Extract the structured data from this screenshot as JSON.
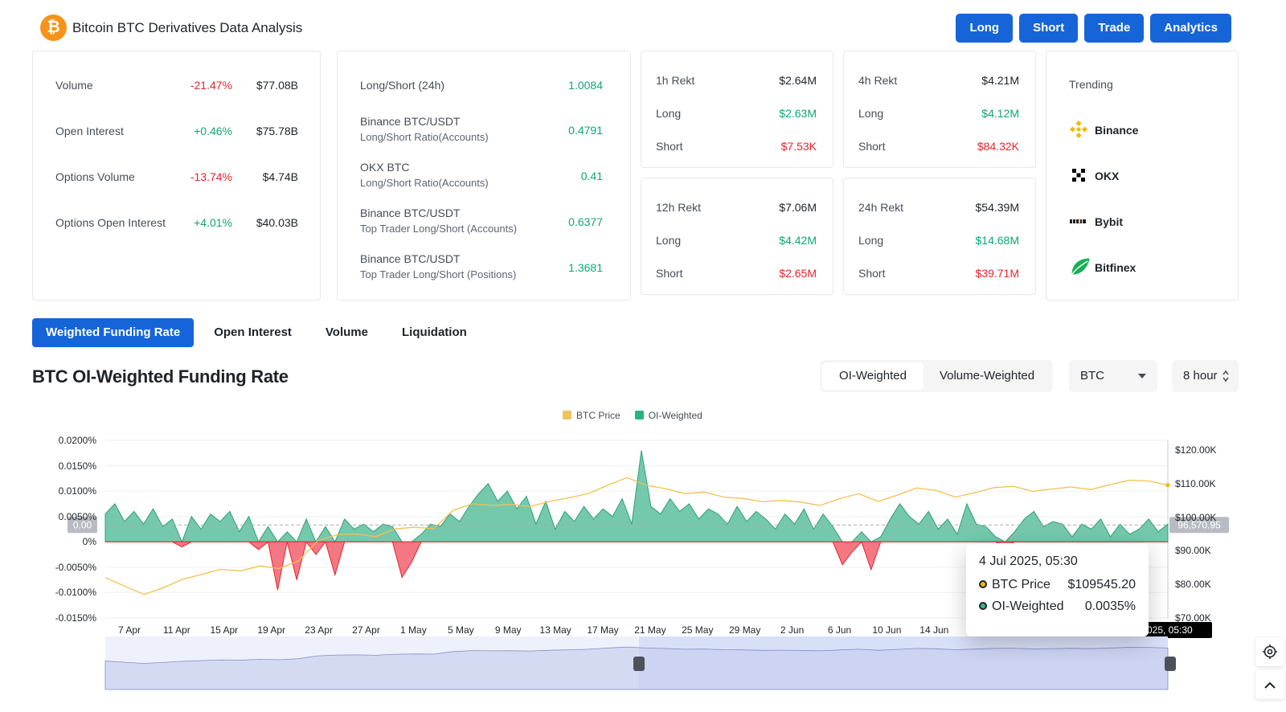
{
  "app": {
    "title": "Bitcoin BTC Derivatives Data Analysis",
    "logo_glyph": "₿"
  },
  "nav": [
    "Long",
    "Short",
    "Trade",
    "Analytics"
  ],
  "stats": [
    {
      "label": "Volume",
      "pct": "-21.47%",
      "value": "$77.08B",
      "dir": "down"
    },
    {
      "label": "Open Interest",
      "pct": "+0.46%",
      "value": "$75.78B",
      "dir": "up"
    },
    {
      "label": "Options Volume",
      "pct": "-13.74%",
      "value": "$4.74B",
      "dir": "down"
    },
    {
      "label": "Options Open Interest",
      "pct": "+4.01%",
      "value": "$40.03B",
      "dir": "up"
    }
  ],
  "ratios": [
    {
      "label": "Long/Short (24h)",
      "sub": "",
      "value": "1.0084"
    },
    {
      "label": "Binance BTC/USDT",
      "sub": "Long/Short Ratio(Accounts)",
      "value": "0.4791"
    },
    {
      "label": "OKX BTC",
      "sub": "Long/Short Ratio(Accounts)",
      "value": "0.41"
    },
    {
      "label": "Binance BTC/USDT",
      "sub": "Top Trader Long/Short (Accounts)",
      "value": "0.6377"
    },
    {
      "label": "Binance BTC/USDT",
      "sub": "Top Trader Long/Short (Positions)",
      "value": "1.3681"
    }
  ],
  "rekt": [
    {
      "title": "1h Rekt",
      "total": "$2.64M",
      "long_label": "Long",
      "long": "$2.63M",
      "short_label": "Short",
      "short": "$7.53K"
    },
    {
      "title": "4h Rekt",
      "total": "$4.21M",
      "long_label": "Long",
      "long": "$4.12M",
      "short_label": "Short",
      "short": "$84.32K"
    },
    {
      "title": "12h Rekt",
      "total": "$7.06M",
      "long_label": "Long",
      "long": "$4.42M",
      "short_label": "Short",
      "short": "$2.65M"
    },
    {
      "title": "24h Rekt",
      "total": "$54.39M",
      "long_label": "Long",
      "long": "$14.68M",
      "short_label": "Short",
      "short": "$39.71M"
    }
  ],
  "trending": {
    "title": "Trending",
    "items": [
      {
        "name": "Binance",
        "icon": "binance-icon"
      },
      {
        "name": "OKX",
        "icon": "okx-icon"
      },
      {
        "name": "Bybit",
        "icon": "bybit-icon"
      },
      {
        "name": "Bitfinex",
        "icon": "bitfinex-icon"
      }
    ]
  },
  "tabs": [
    "Weighted Funding Rate",
    "Open Interest",
    "Volume",
    "Liquidation"
  ],
  "section_title": "BTC OI-Weighted Funding Rate",
  "weighting": {
    "active": "OI-Weighted",
    "other": "Volume-Weighted"
  },
  "coin_select": "BTC",
  "interval_select": "8 hour",
  "colors": {
    "accent": "#1565d8",
    "price": "#f0b90b",
    "positive": "#38b48b",
    "negative": "#f0475a"
  },
  "chart_data": {
    "type": "area",
    "legend": [
      "BTC Price",
      "OI-Weighted"
    ],
    "x_ticks": [
      "7 Apr",
      "11 Apr",
      "15 Apr",
      "19 Apr",
      "23 Apr",
      "27 Apr",
      "1 May",
      "5 May",
      "9 May",
      "13 May",
      "17 May",
      "21 May",
      "25 May",
      "29 May",
      "2 Jun",
      "6 Jun",
      "10 Jun",
      "14 Jun"
    ],
    "y_left_ticks": [
      "0.0200%",
      "0.0150%",
      "0.0100%",
      "0.0050%",
      "0%",
      "-0.0050%",
      "-0.0100%",
      "-0.0150%"
    ],
    "y_right_ticks": [
      "$120.00K",
      "$110.00K",
      "$100.00K",
      "$90.00K",
      "$80.00K",
      "$70.00K"
    ],
    "ylim_left": [
      -0.015,
      0.02
    ],
    "ylim_right": [
      70000,
      120000
    ],
    "crosshair_left_label": "0.00",
    "crosshair_right_label": "96,570.95",
    "crosshair_x_label": "2025, 05:30",
    "series": [
      {
        "name": "OI-Weighted",
        "unit": "%",
        "x_start": "2025-04-06",
        "x_end": "2025-07-04",
        "values": [
          0.0055,
          0.0075,
          0.004,
          0.006,
          0.0035,
          0.0065,
          0.003,
          0.0045,
          -0.001,
          0.005,
          0.0025,
          0.0055,
          0.004,
          0.006,
          0.002,
          0.005,
          -0.0015,
          0.003,
          -0.0095,
          0.002,
          -0.0075,
          0.0045,
          -0.0025,
          0.003,
          -0.0065,
          0.0045,
          0.0025,
          0.0035,
          0.002,
          0.0035,
          0.003,
          -0.007,
          -0.004,
          0.0015,
          0.0035,
          0.003,
          0.0055,
          0.004,
          0.007,
          0.0095,
          0.0115,
          0.008,
          0.01,
          0.0065,
          0.009,
          0.0035,
          0.008,
          0.0025,
          0.006,
          0.004,
          0.007,
          0.0045,
          0.0065,
          0.005,
          0.0085,
          0.0035,
          0.018,
          0.007,
          0.0055,
          0.0085,
          0.006,
          0.0075,
          0.0045,
          0.0065,
          0.0055,
          0.0035,
          0.007,
          0.004,
          0.006,
          0.0045,
          0.0025,
          0.0055,
          0.0035,
          0.0065,
          0.0025,
          0.0055,
          0.003,
          -0.0045,
          -0.002,
          0.002,
          -0.0055,
          0.001,
          0.0045,
          0.0075,
          0.005,
          0.0035,
          0.006,
          0.0025,
          0.0045,
          0.0015,
          0.0075,
          0.0035,
          0.003,
          0.001,
          -0.001,
          0.002,
          0.0045,
          0.006,
          0.003,
          0.004,
          0.0035,
          0.001,
          0.0035,
          0.0025,
          0.0045,
          0.001,
          0.0035,
          0.0015,
          0.0025,
          0.0045,
          0.002,
          0.0035
        ]
      },
      {
        "name": "BTC Price",
        "unit": "USD",
        "x_start": "2025-04-06",
        "x_end": "2025-07-04",
        "values": [
          82000,
          79500,
          77000,
          79000,
          81500,
          83000,
          84500,
          84000,
          85500,
          84700,
          87000,
          93000,
          94800,
          95000,
          94200,
          96500,
          97000,
          96600,
          102000,
          104000,
          103500,
          103800,
          103200,
          104700,
          105800,
          107000,
          109500,
          111800,
          109500,
          108500,
          107000,
          107500,
          106000,
          105600,
          104600,
          105000,
          104500,
          103500,
          105500,
          107000,
          104700,
          106600,
          108700,
          108000,
          106000,
          107300,
          108800,
          109200,
          107700,
          108400,
          109000,
          108200,
          109700,
          111000,
          110800,
          109545
        ]
      }
    ],
    "tooltip": {
      "date": "4 Jul 2025, 05:30",
      "rows": [
        {
          "name": "BTC Price",
          "value": "$109545.20",
          "color": "#f0b90b"
        },
        {
          "name": "OI-Weighted",
          "value": "0.0035%",
          "color": "#38b48b"
        }
      ]
    }
  }
}
